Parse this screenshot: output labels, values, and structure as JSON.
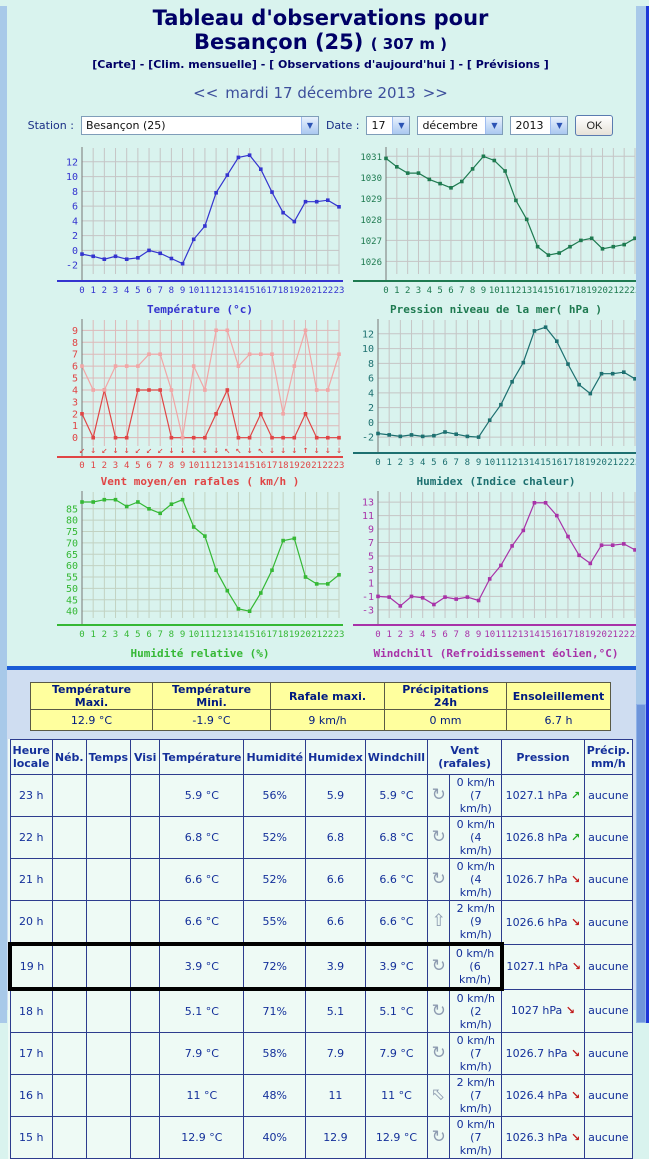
{
  "page": {
    "title_line1": "Tableau d'observations pour",
    "title_city": "Besançon (25)",
    "title_altitude": "( 307 m )",
    "nav_links": [
      "[Carte]",
      "[Clim. mensuelle]",
      "[ Observations d'aujourd'hui ]",
      "[ Prévisions ]"
    ],
    "nav_separator": " - ",
    "date_nav": {
      "prev": "<<",
      "label": "mardi 17 décembre 2013",
      "next": ">>"
    },
    "station_form": {
      "station_label": "Station :",
      "station_value": "Besançon (25)",
      "date_label": "Date :",
      "day": "17",
      "month": "décembre",
      "year": "2013",
      "ok_label": "OK"
    }
  },
  "hours": [
    "0",
    "1",
    "2",
    "3",
    "4",
    "5",
    "6",
    "7",
    "8",
    "9",
    "10",
    "11",
    "12",
    "13",
    "14",
    "15",
    "16",
    "17",
    "18",
    "19",
    "20",
    "21",
    "22",
    "23"
  ],
  "chart_data": [
    {
      "id": "temperature",
      "type": "line",
      "title": "Température (°c)",
      "color": "#3434cf",
      "grid_color": "#c5c5c5",
      "ymin": -3.2,
      "ymax": 13.6,
      "yticks": [
        -2,
        0,
        2,
        4,
        6,
        8,
        10,
        12
      ],
      "series": [
        {
          "name": "température",
          "color": "#3434cf",
          "values": [
            -0.5,
            -0.8,
            -1.2,
            -0.8,
            -1.2,
            -1.0,
            0.0,
            -0.4,
            -1.1,
            -1.8,
            1.5,
            3.3,
            7.8,
            10.2,
            12.6,
            12.9,
            11,
            7.9,
            5.1,
            3.9,
            6.6,
            6.6,
            6.8,
            5.9
          ]
        }
      ]
    },
    {
      "id": "pression",
      "type": "line",
      "title": "Pression niveau de la mer( hPa )",
      "color": "#1e7a50",
      "grid_color": "#c5c5c5",
      "ymin": 1025.4,
      "ymax": 1031.3,
      "yticks": [
        1026,
        1027,
        1028,
        1029,
        1030,
        1031
      ],
      "series": [
        {
          "name": "pression",
          "color": "#1e7a50",
          "values": [
            1030.9,
            1030.5,
            1030.2,
            1030.2,
            1029.9,
            1029.7,
            1029.5,
            1029.8,
            1030.4,
            1031,
            1030.8,
            1030.3,
            1028.9,
            1028,
            1026.7,
            1026.3,
            1026.4,
            1026.7,
            1027,
            1027.1,
            1026.6,
            1026.7,
            1026.8,
            1027.1
          ]
        }
      ]
    },
    {
      "id": "vent",
      "type": "line",
      "title": "Vent moyen/en rafales ( km/h )",
      "color": "#e04545",
      "grid_color": "#ddb9b9",
      "ymin": -0.7,
      "ymax": 9.7,
      "yticks": [
        0,
        1,
        2,
        3,
        4,
        5,
        6,
        7,
        8,
        9
      ],
      "series": [
        {
          "name": "vent moyen",
          "color": "#e04545",
          "values": [
            2,
            0,
            4,
            0,
            0,
            4,
            4,
            4,
            0,
            0,
            0,
            0,
            2,
            4,
            0,
            0,
            2,
            0,
            0,
            0,
            2,
            0,
            0,
            0
          ]
        },
        {
          "name": "rafales",
          "color": "#f2a5a5",
          "values": [
            6,
            4,
            4,
            6,
            6,
            6,
            7,
            7,
            4,
            0,
            6,
            4,
            9,
            9,
            6,
            7,
            7,
            7,
            2,
            6,
            9,
            4,
            4,
            7
          ]
        }
      ],
      "arrows": {
        "color": "#e04545",
        "glyphs": [
          "↙",
          "↓",
          "↙",
          "↓",
          "↓",
          "↙",
          "↙",
          "↙",
          "↓",
          "↓",
          "↓",
          "↓",
          "↓",
          "↖",
          "↖",
          "↓",
          "↖",
          "↓",
          "↓",
          "↓",
          "↑",
          "↓",
          "↓",
          "↓"
        ]
      }
    },
    {
      "id": "humidex",
      "type": "line",
      "title": "Humidex (Indice chaleur)",
      "color": "#1d7070",
      "grid_color": "#c5c5c5",
      "ymin": -3.2,
      "ymax": 13.6,
      "yticks": [
        -2,
        0,
        2,
        4,
        6,
        8,
        10,
        12
      ],
      "series": [
        {
          "name": "humidex",
          "color": "#1d7070",
          "values": [
            -1.5,
            -1.7,
            -1.9,
            -1.7,
            -1.9,
            -1.8,
            -1.3,
            -1.6,
            -1.9,
            -2,
            0.3,
            2.4,
            5.5,
            8.1,
            12.4,
            12.9,
            11,
            7.9,
            5.1,
            3.9,
            6.6,
            6.6,
            6.8,
            5.9
          ]
        }
      ]
    },
    {
      "id": "humidite",
      "type": "line",
      "title": "Humidité relative (%)",
      "color": "#35b835",
      "grid_color": "#c2d2c2",
      "ymin": 37,
      "ymax": 91.5,
      "yticks": [
        40,
        45,
        50,
        55,
        60,
        65,
        70,
        75,
        80,
        85
      ],
      "series": [
        {
          "name": "humidité",
          "color": "#35b835",
          "values": [
            88,
            88,
            89,
            89,
            86,
            88,
            85,
            83,
            87,
            89,
            77,
            73,
            58,
            49,
            41,
            40,
            48,
            58,
            71,
            72,
            55,
            52,
            52,
            56
          ]
        }
      ]
    },
    {
      "id": "windchill",
      "type": "line",
      "title": "Windchill (Refroidissement éolien,°C)",
      "color": "#a832a8",
      "grid_color": "#c5c5c5",
      "ymin": -4.2,
      "ymax": 14.2,
      "yticks": [
        -3,
        -1,
        1,
        3,
        5,
        7,
        9,
        11,
        13
      ],
      "series": [
        {
          "name": "windchill",
          "color": "#a832a8",
          "values": [
            -1,
            -1.1,
            -2.4,
            -1,
            -1.2,
            -2.2,
            -1.1,
            -1.4,
            -1.1,
            -1.6,
            1.6,
            3.6,
            6.5,
            8.8,
            12.9,
            12.9,
            11,
            7.9,
            5.1,
            3.9,
            6.6,
            6.6,
            6.8,
            5.9
          ]
        }
      ]
    }
  ],
  "summary_table": {
    "headers": [
      "Température Maxi.",
      "Température Mini.",
      "Rafale maxi.",
      "Précipitations 24h",
      "Ensoleillement"
    ],
    "values": [
      "12.9 °C",
      "-1.9 °C",
      "9 km/h",
      "0 mm",
      "6.7 h"
    ]
  },
  "obs_table": {
    "headers": [
      {
        "label": "Heure locale"
      },
      {
        "label": "Néb."
      },
      {
        "label": "Temps"
      },
      {
        "label": "Visi"
      },
      {
        "label": "Température"
      },
      {
        "label": "Humidité"
      },
      {
        "label": "Humidex"
      },
      {
        "label": "Windchill"
      },
      {
        "label": "Vent (rafales)",
        "colspan": 2
      },
      {
        "label": "Pression"
      },
      {
        "label": "Précip. mm/h"
      }
    ],
    "rows": [
      {
        "hour": "23 h",
        "neb": "",
        "temps": "",
        "visi": "",
        "temperature": "5.9 °C",
        "humidity": "56%",
        "humidex": "5.9",
        "windchill": "5.9 °C",
        "wind_icon": "variable",
        "wind": "0 km/h (7 km/h)",
        "pressure": "1027.1 hPa",
        "pressure_trend": "up",
        "precip": "aucune",
        "highlight": false
      },
      {
        "hour": "22 h",
        "neb": "",
        "temps": "",
        "visi": "",
        "temperature": "6.8 °C",
        "humidity": "52%",
        "humidex": "6.8",
        "windchill": "6.8 °C",
        "wind_icon": "variable",
        "wind": "0 km/h (4 km/h)",
        "pressure": "1026.8 hPa",
        "pressure_trend": "up",
        "precip": "aucune",
        "highlight": false
      },
      {
        "hour": "21 h",
        "neb": "",
        "temps": "",
        "visi": "",
        "temperature": "6.6 °C",
        "humidity": "52%",
        "humidex": "6.6",
        "windchill": "6.6 °C",
        "wind_icon": "variable",
        "wind": "0 km/h (4 km/h)",
        "pressure": "1026.7 hPa",
        "pressure_trend": "down",
        "precip": "aucune",
        "highlight": false
      },
      {
        "hour": "20 h",
        "neb": "",
        "temps": "",
        "visi": "",
        "temperature": "6.6 °C",
        "humidity": "55%",
        "humidex": "6.6",
        "windchill": "6.6 °C",
        "wind_icon": "up",
        "wind": "2 km/h (9 km/h)",
        "pressure": "1026.6 hPa",
        "pressure_trend": "down",
        "precip": "aucune",
        "highlight": false
      },
      {
        "hour": "19 h",
        "neb": "",
        "temps": "",
        "visi": "",
        "temperature": "3.9 °C",
        "humidity": "72%",
        "humidex": "3.9",
        "windchill": "3.9 °C",
        "wind_icon": "variable",
        "wind": "0 km/h (6 km/h)",
        "pressure": "1027.1 hPa",
        "pressure_trend": "down",
        "precip": "aucune",
        "highlight": true
      },
      {
        "hour": "18 h",
        "neb": "",
        "temps": "",
        "visi": "",
        "temperature": "5.1 °C",
        "humidity": "71%",
        "humidex": "5.1",
        "windchill": "5.1 °C",
        "wind_icon": "variable",
        "wind": "0 km/h (2 km/h)",
        "pressure": "1027 hPa",
        "pressure_trend": "down",
        "precip": "aucune",
        "highlight": false
      },
      {
        "hour": "17 h",
        "neb": "",
        "temps": "",
        "visi": "",
        "temperature": "7.9 °C",
        "humidity": "58%",
        "humidex": "7.9",
        "windchill": "7.9 °C",
        "wind_icon": "variable",
        "wind": "0 km/h (7 km/h)",
        "pressure": "1026.7 hPa",
        "pressure_trend": "down",
        "precip": "aucune",
        "highlight": false
      },
      {
        "hour": "16 h",
        "neb": "",
        "temps": "",
        "visi": "",
        "temperature": "11 °C",
        "humidity": "48%",
        "humidex": "11",
        "windchill": "11 °C",
        "wind_icon": "nw",
        "wind": "2 km/h (7 km/h)",
        "pressure": "1026.4 hPa",
        "pressure_trend": "down",
        "precip": "aucune",
        "highlight": false
      },
      {
        "hour": "15 h",
        "neb": "",
        "temps": "",
        "visi": "",
        "temperature": "12.9 °C",
        "humidity": "40%",
        "humidex": "12.9",
        "windchill": "12.9 °C",
        "wind_icon": "variable",
        "wind": "0 km/h (7 km/h)",
        "pressure": "1026.3 hPa",
        "pressure_trend": "down",
        "precip": "aucune",
        "highlight": false
      }
    ]
  },
  "icons": {
    "wind_variable": "↻",
    "wind_up": "⇧",
    "wind_nw": "⇧",
    "pressure_up": "↗",
    "pressure_down": "↘"
  },
  "colors": {
    "pressure_up": "#1faa1f",
    "pressure_down": "#c01818",
    "highlight": "#000000"
  }
}
